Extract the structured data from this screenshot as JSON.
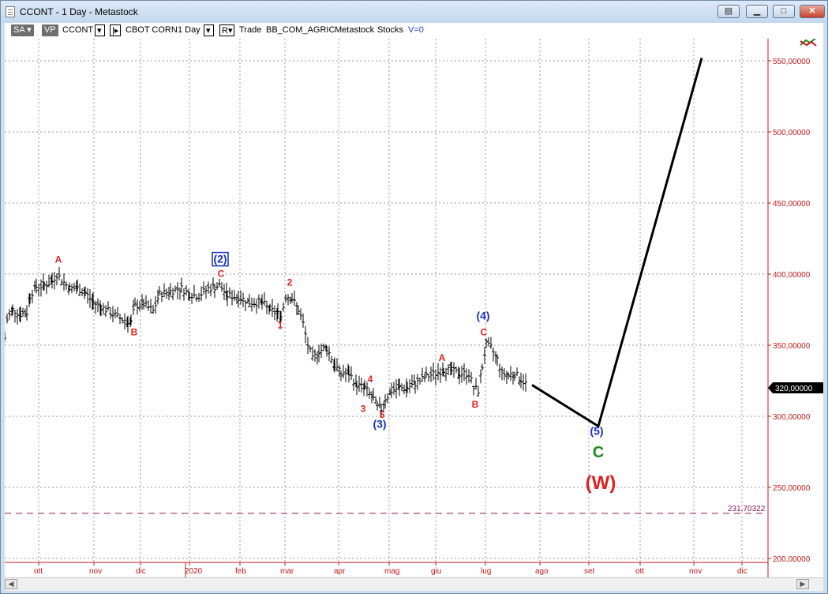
{
  "window": {
    "title": "CCONT - 1 Day - Metastock",
    "buttons": [
      "restore-layout",
      "minimize",
      "maximize",
      "close"
    ]
  },
  "toolbar": {
    "sa_label": "SA",
    "vp_label": "VP",
    "symbol": "CCONT",
    "name": "CBOT CORN",
    "period": "1 Day",
    "r_label": "R",
    "trade": "Trade",
    "category": "BB_COM_AGRIC",
    "source": "Metastock",
    "type": "Stocks",
    "volume": "V=0"
  },
  "colors": {
    "wave_red": "#e02020",
    "wave_blue": "#1a2fbf",
    "wave_green": "#1e8c1e",
    "bars": "#000000",
    "grid": "#9a9a9a",
    "level_line": "#8a1a5a",
    "price_axis": "#c01818"
  },
  "chart_data": {
    "type": "ohlc",
    "ylim": [
      200,
      570
    ],
    "y_ticks": [
      "550,00000",
      "500,00000",
      "450,00000",
      "400,00000",
      "350,00000",
      "300,00000",
      "250,00000",
      "200,00000"
    ],
    "x_ticks": [
      "ott",
      "nov",
      "dic",
      "2020",
      "feb",
      "mar",
      "apr",
      "mag",
      "giu",
      "lug",
      "ago",
      "set",
      "ott",
      "nov",
      "dic"
    ],
    "last_price": "320,00000",
    "level": {
      "value": 231.70322,
      "label": "231,70322"
    },
    "bar_points": [
      [
        0,
        355
      ],
      [
        3,
        368
      ],
      [
        10,
        375
      ],
      [
        20,
        372
      ],
      [
        28,
        373
      ],
      [
        32,
        385
      ],
      [
        40,
        391
      ],
      [
        50,
        392
      ],
      [
        60,
        395
      ],
      [
        66,
        400
      ],
      [
        72,
        396
      ],
      [
        82,
        390
      ],
      [
        92,
        390
      ],
      [
        102,
        387
      ],
      [
        112,
        380
      ],
      [
        122,
        377
      ],
      [
        134,
        373
      ],
      [
        146,
        369
      ],
      [
        156,
        367
      ],
      [
        160,
        366
      ],
      [
        165,
        378
      ],
      [
        176,
        379
      ],
      [
        188,
        374
      ],
      [
        196,
        386
      ],
      [
        210,
        388
      ],
      [
        224,
        390
      ],
      [
        234,
        386
      ],
      [
        246,
        385
      ],
      [
        258,
        390
      ],
      [
        266,
        391
      ],
      [
        272,
        392
      ],
      [
        282,
        385
      ],
      [
        296,
        384
      ],
      [
        310,
        380
      ],
      [
        326,
        380
      ],
      [
        336,
        375
      ],
      [
        346,
        372
      ],
      [
        350,
        370
      ],
      [
        356,
        385
      ],
      [
        364,
        383
      ],
      [
        372,
        375
      ],
      [
        378,
        365
      ],
      [
        384,
        350
      ],
      [
        390,
        340
      ],
      [
        398,
        346
      ],
      [
        408,
        348
      ],
      [
        418,
        336
      ],
      [
        426,
        330
      ],
      [
        436,
        330
      ],
      [
        446,
        322
      ],
      [
        456,
        320
      ],
      [
        462,
        316
      ],
      [
        467,
        312
      ],
      [
        472,
        307
      ],
      [
        477,
        305
      ],
      [
        482,
        312
      ],
      [
        490,
        318
      ],
      [
        500,
        320
      ],
      [
        510,
        320
      ],
      [
        520,
        323
      ],
      [
        534,
        328
      ],
      [
        546,
        330
      ],
      [
        556,
        333
      ],
      [
        566,
        332
      ],
      [
        576,
        330
      ],
      [
        588,
        330
      ],
      [
        594,
        320
      ],
      [
        600,
        318
      ],
      [
        605,
        335
      ],
      [
        610,
        350
      ],
      [
        616,
        348
      ],
      [
        624,
        340
      ],
      [
        630,
        330
      ],
      [
        638,
        329
      ],
      [
        646,
        330
      ],
      [
        654,
        326
      ],
      [
        662,
        322
      ]
    ],
    "projection": [
      {
        "day": 668,
        "price": 322
      },
      {
        "day": 752,
        "price": 293
      },
      {
        "day": 883,
        "price": 552
      }
    ],
    "annotations": [
      {
        "text": "A",
        "day": 68,
        "price": 408,
        "color": "red",
        "size": "s"
      },
      {
        "text": "B",
        "day": 164,
        "price": 357,
        "color": "red",
        "size": "s"
      },
      {
        "text": "(2)",
        "day": 273,
        "price": 408,
        "color": "blue",
        "size": "m",
        "boxed": true
      },
      {
        "text": "C",
        "day": 274,
        "price": 398,
        "color": "red",
        "size": "s"
      },
      {
        "text": "2",
        "day": 361,
        "price": 392,
        "color": "red",
        "size": "s"
      },
      {
        "text": "1",
        "day": 349,
        "price": 362,
        "color": "red",
        "size": "s"
      },
      {
        "text": "4",
        "day": 463,
        "price": 324,
        "color": "red",
        "size": "s"
      },
      {
        "text": "3",
        "day": 454,
        "price": 303,
        "color": "red",
        "size": "s"
      },
      {
        "text": "5",
        "day": 478,
        "price": 299,
        "color": "red",
        "size": "s"
      },
      {
        "text": "(3)",
        "day": 475,
        "price": 292,
        "color": "blue",
        "size": "m"
      },
      {
        "text": "A",
        "day": 554,
        "price": 339,
        "color": "red",
        "size": "s"
      },
      {
        "text": "B",
        "day": 596,
        "price": 306,
        "color": "red",
        "size": "s"
      },
      {
        "text": "(4)",
        "day": 606,
        "price": 368,
        "color": "blue",
        "size": "m"
      },
      {
        "text": "C",
        "day": 607,
        "price": 357,
        "color": "red",
        "size": "s"
      },
      {
        "text": "(5)",
        "day": 750,
        "price": 287,
        "color": "blue",
        "size": "m"
      },
      {
        "text": "C",
        "day": 752,
        "price": 271,
        "color": "green",
        "size": "l"
      },
      {
        "text": "(W)",
        "day": 755,
        "price": 249,
        "color": "red",
        "size": "xl"
      }
    ]
  }
}
